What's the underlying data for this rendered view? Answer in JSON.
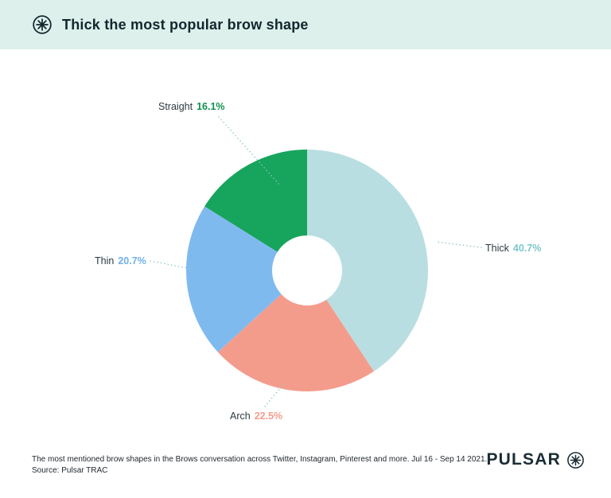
{
  "header": {
    "title": "Thick the most popular brow shape"
  },
  "chart_data": {
    "type": "pie",
    "donut": true,
    "inner_radius_ratio": 0.29,
    "start_angle_deg": 0,
    "direction": "clockwise",
    "unit": "%",
    "title": "Thick the most popular brow shape",
    "segments": [
      {
        "label": "Thick",
        "value": 40.7,
        "display": "40.7%",
        "color": "#b9dee1",
        "label_color": "#7cc6cb"
      },
      {
        "label": "Arch",
        "value": 22.5,
        "display": "22.5%",
        "color": "#f49c8c",
        "label_color": "#f49c8c"
      },
      {
        "label": "Thin",
        "value": 20.7,
        "display": "20.7%",
        "color": "#7fbaef",
        "label_color": "#6fb0ea"
      },
      {
        "label": "Straight",
        "value": 16.1,
        "display": "16.1%",
        "color": "#17a45c",
        "label_color": "#0f8f50"
      }
    ]
  },
  "footer": {
    "caption_line1": "The most mentioned brow shapes in the Brows conversation across Twitter, Instagram, Pinterest and more. Jul 16 - Sep 14 2021.",
    "caption_line2": "Source: Pulsar TRAC",
    "brand": "PULSAR"
  }
}
